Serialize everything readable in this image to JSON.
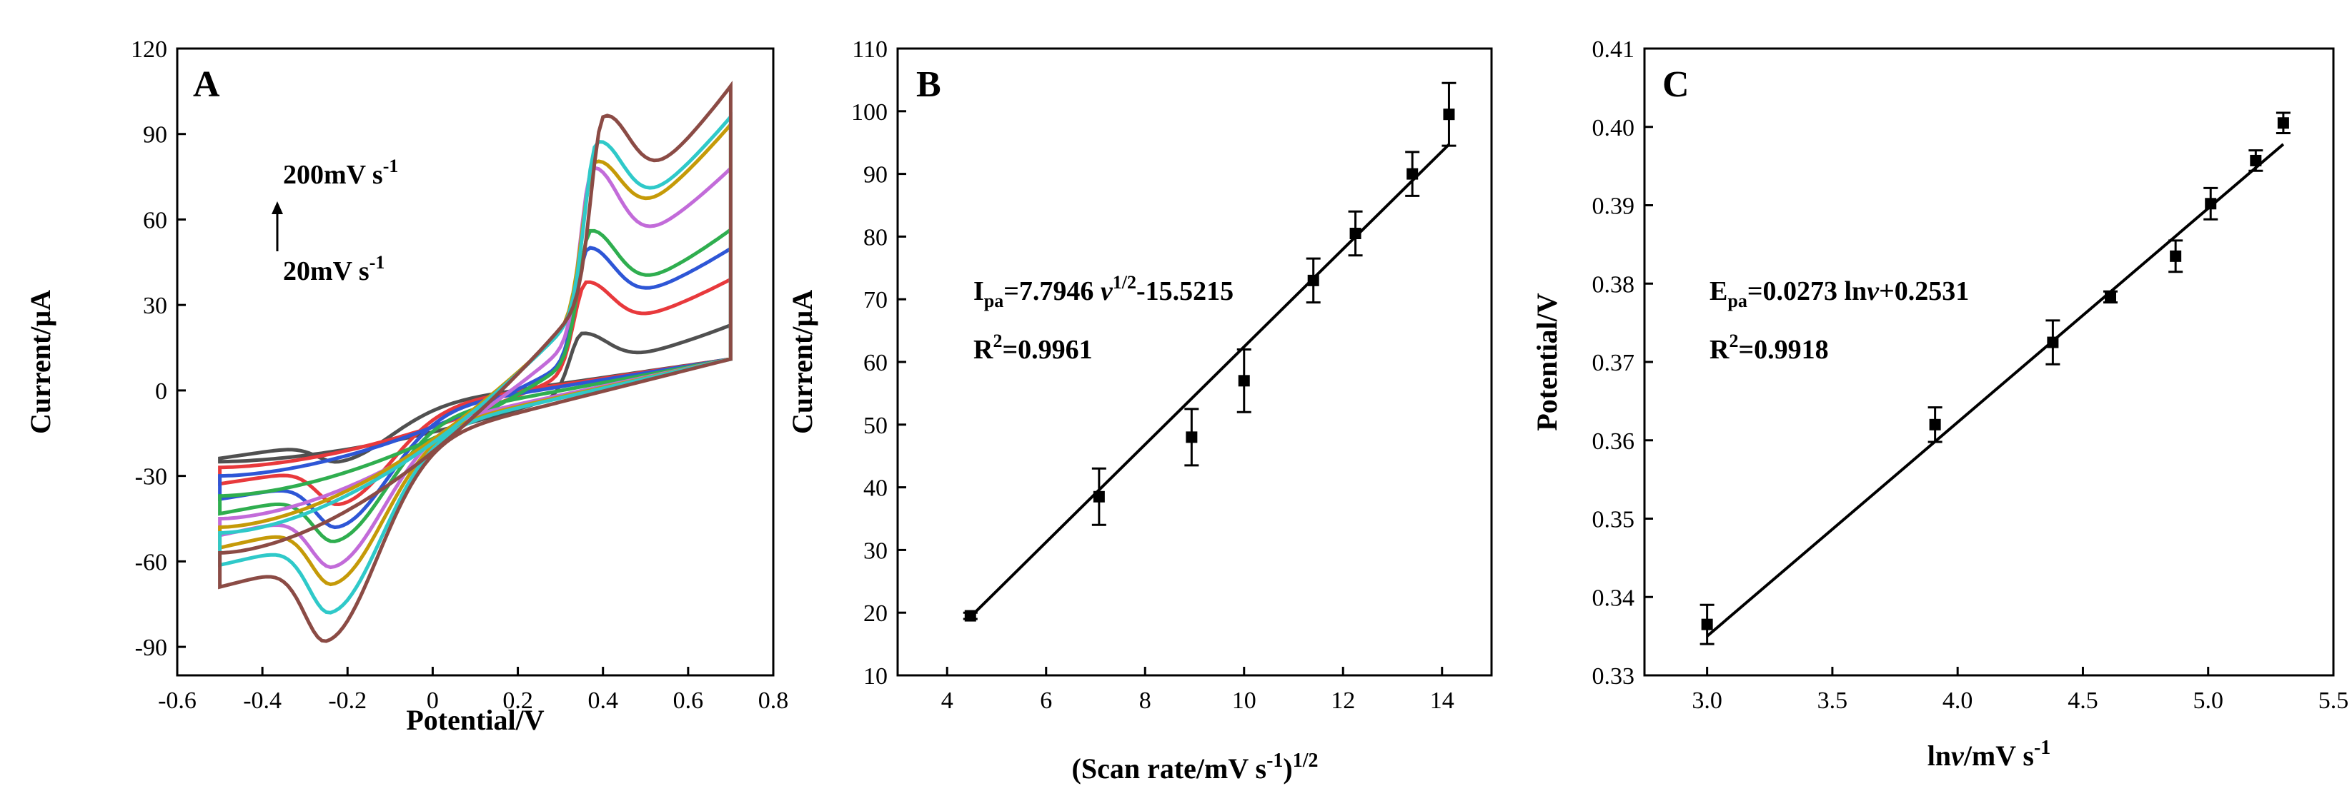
{
  "figure": {
    "panels": [
      "A",
      "B",
      "C"
    ]
  },
  "chart_data": [
    {
      "panel": "A",
      "type": "line",
      "xlabel": "Potential/V",
      "ylabel": "Current/μA",
      "xlim": [
        -0.6,
        0.8
      ],
      "ylim": [
        -100,
        120
      ],
      "xticks": [
        -0.6,
        -0.4,
        -0.2,
        0.0,
        0.2,
        0.4,
        0.6,
        0.8
      ],
      "yticks": [
        -90,
        -60,
        -30,
        0,
        30,
        60,
        90,
        120
      ],
      "annotation_top": "200mV s",
      "annotation_bottom": "20mV s",
      "annotation_superscript": "-1",
      "series": [
        {
          "color": "#505050",
          "x_start": -0.5,
          "x_vertex": 0.7,
          "start_current": -25,
          "anodic_peak_potential": 0.35,
          "anodic_peak_current": 20,
          "end_current": 21,
          "cathodic_peak_potential": -0.22,
          "cathodic_peak_current": -25,
          "vertex_return_current": 11
        },
        {
          "color": "#e8393c",
          "x_start": -0.5,
          "x_vertex": 0.7,
          "start_current": -27,
          "anodic_peak_potential": 0.36,
          "anodic_peak_current": 38,
          "end_current": 36,
          "cathodic_peak_potential": -0.22,
          "cathodic_peak_current": -40,
          "vertex_return_current": 11
        },
        {
          "color": "#2e56d6",
          "x_start": -0.5,
          "x_vertex": 0.7,
          "start_current": -30,
          "anodic_peak_potential": 0.365,
          "anodic_peak_current": 50,
          "end_current": 46,
          "cathodic_peak_potential": -0.225,
          "cathodic_peak_current": -48,
          "vertex_return_current": 11
        },
        {
          "color": "#2fae4f",
          "x_start": -0.5,
          "x_vertex": 0.7,
          "start_current": -37,
          "anodic_peak_potential": 0.37,
          "anodic_peak_current": 56,
          "end_current": 52,
          "cathodic_peak_potential": -0.23,
          "cathodic_peak_current": -53,
          "vertex_return_current": 11
        },
        {
          "color": "#c26bd9",
          "x_start": -0.5,
          "x_vertex": 0.7,
          "start_current": -45,
          "anodic_peak_potential": 0.375,
          "anodic_peak_current": 78,
          "end_current": 72,
          "cathodic_peak_potential": -0.235,
          "cathodic_peak_current": -62,
          "vertex_return_current": 11
        },
        {
          "color": "#c59a08",
          "x_start": -0.5,
          "x_vertex": 0.7,
          "start_current": -48,
          "anodic_peak_potential": 0.38,
          "anodic_peak_current": 80,
          "end_current": 88,
          "cathodic_peak_potential": -0.235,
          "cathodic_peak_current": -68,
          "vertex_return_current": 11
        },
        {
          "color": "#2fc9c9",
          "x_start": -0.5,
          "x_vertex": 0.7,
          "start_current": -50,
          "anodic_peak_potential": 0.385,
          "anodic_peak_current": 87,
          "end_current": 90,
          "cathodic_peak_potential": -0.24,
          "cathodic_peak_current": -78,
          "vertex_return_current": 11
        },
        {
          "color": "#8b4b45",
          "x_start": -0.5,
          "x_vertex": 0.7,
          "start_current": -57,
          "anodic_peak_potential": 0.4,
          "anodic_peak_current": 96,
          "end_current": 100,
          "cathodic_peak_potential": -0.25,
          "cathodic_peak_current": -88,
          "vertex_return_current": 11
        }
      ]
    },
    {
      "panel": "B",
      "type": "scatter",
      "xlabel": "(Scan rate/mV s",
      "xlabel_suffix": ")",
      "xlabel_superscript_inner": "-1",
      "xlabel_superscript_outer": "1/2",
      "ylabel": "Current/μA",
      "xlim": [
        3,
        15
      ],
      "ylim": [
        10,
        110
      ],
      "xticks": [
        4,
        6,
        8,
        10,
        12,
        14
      ],
      "yticks": [
        10,
        20,
        30,
        40,
        50,
        60,
        70,
        80,
        90,
        100,
        110
      ],
      "points": [
        {
          "x": 4.47,
          "y": 19.5,
          "err": 0.5
        },
        {
          "x": 7.07,
          "y": 38.5,
          "err": 4.5
        },
        {
          "x": 8.94,
          "y": 48.0,
          "err": 4.5
        },
        {
          "x": 10.0,
          "y": 57.0,
          "err": 5.0
        },
        {
          "x": 11.4,
          "y": 73.0,
          "err": 3.5
        },
        {
          "x": 12.25,
          "y": 80.5,
          "err": 3.5
        },
        {
          "x": 13.4,
          "y": 90.0,
          "err": 3.5
        },
        {
          "x": 14.14,
          "y": 99.5,
          "err": 5.0
        }
      ],
      "fit": {
        "slope": 7.7946,
        "intercept": -15.5215,
        "x_range": [
          4.47,
          14.14
        ]
      },
      "equation_parts": [
        "I",
        "pa",
        "=7.7946 ",
        "v",
        "1/2",
        "-15.5215"
      ],
      "r2_parts": [
        "R",
        "2",
        "=0.9961"
      ]
    },
    {
      "panel": "C",
      "type": "scatter",
      "xlabel": "ln",
      "xlabel_italic": "v",
      "xlabel_rest": "/mV s",
      "xlabel_superscript": "-1",
      "ylabel": "Potential/V",
      "xlim": [
        2.75,
        5.5
      ],
      "ylim": [
        0.33,
        0.41
      ],
      "xticks": [
        "3.0",
        "3.5",
        "4.0",
        "4.5",
        "5.0",
        "5.5"
      ],
      "yticks": [
        "0.33",
        "0.34",
        "0.35",
        "0.36",
        "0.37",
        "0.38",
        "0.39",
        "0.40",
        "0.41"
      ],
      "points": [
        {
          "x": 3.0,
          "y": 0.3365,
          "err": 0.0025
        },
        {
          "x": 3.91,
          "y": 0.362,
          "err": 0.0022
        },
        {
          "x": 4.38,
          "y": 0.3725,
          "err": 0.0028
        },
        {
          "x": 4.61,
          "y": 0.3783,
          "err": 0.0007
        },
        {
          "x": 4.87,
          "y": 0.3835,
          "err": 0.002
        },
        {
          "x": 5.01,
          "y": 0.3902,
          "err": 0.002
        },
        {
          "x": 5.19,
          "y": 0.3957,
          "err": 0.0013
        },
        {
          "x": 5.3,
          "y": 0.4005,
          "err": 0.0013
        }
      ],
      "fit": {
        "slope": 0.0273,
        "intercept": 0.2531,
        "x_range": [
          3.0,
          5.3
        ]
      },
      "equation_parts": [
        "E",
        "pa",
        "=0.0273 ln",
        "v",
        "+0.2531"
      ],
      "r2_parts": [
        "R",
        "2",
        "=0.9918"
      ]
    }
  ]
}
